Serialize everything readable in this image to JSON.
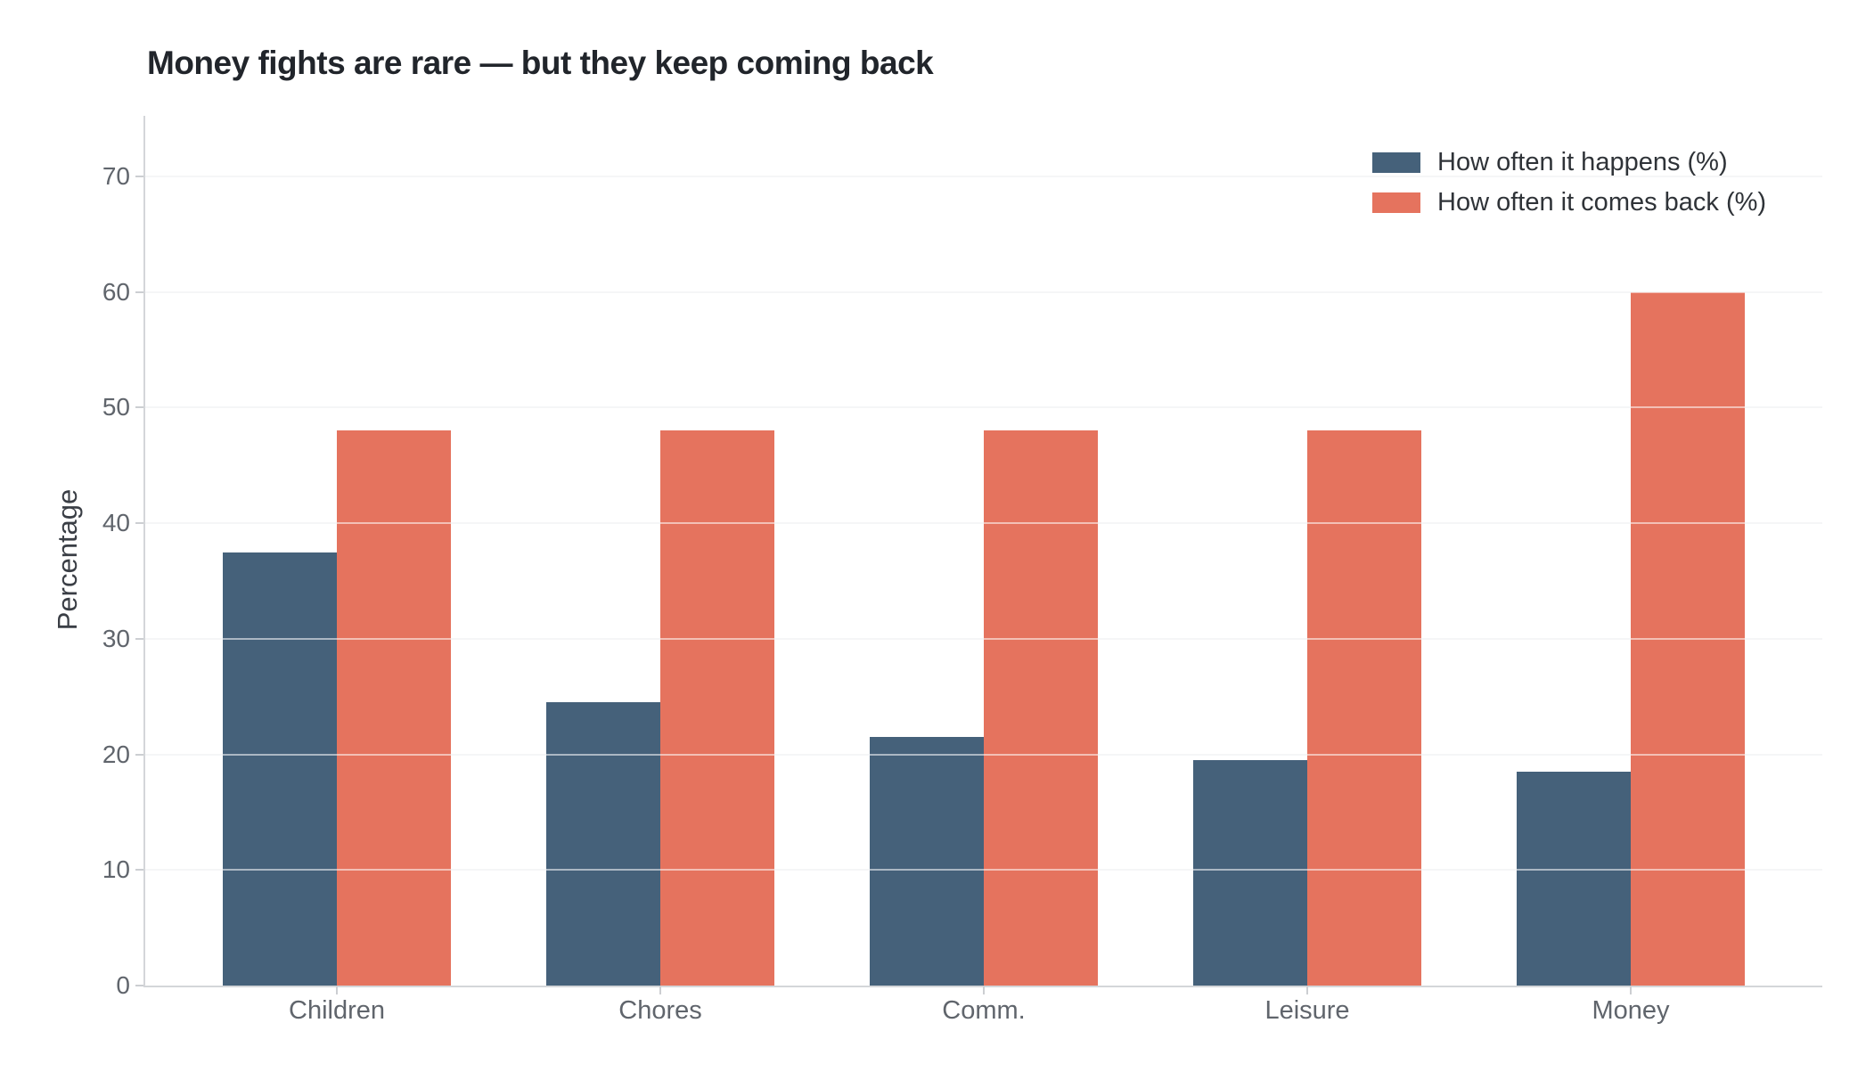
{
  "title": "Money fights are rare — but they keep coming back",
  "chart_data": {
    "type": "bar",
    "subtype": "grouped-vertical",
    "categories": [
      "Children",
      "Chores",
      "Comm.",
      "Leisure",
      "Money"
    ],
    "series": [
      {
        "name": "How often it happens (%)",
        "color": "#45617A",
        "values": [
          37.5,
          24.5,
          21.5,
          19.5,
          18.5
        ]
      },
      {
        "name": "How often it comes back (%)",
        "color": "#E5735E",
        "values": [
          48,
          48,
          48,
          48,
          60
        ]
      }
    ],
    "xlabel": "",
    "ylabel": "Percentage",
    "yticks": [
      0,
      10,
      20,
      30,
      40,
      50,
      60,
      70
    ],
    "ylim": [
      0,
      75.25
    ],
    "grid": true,
    "legend_position": "top-right"
  }
}
